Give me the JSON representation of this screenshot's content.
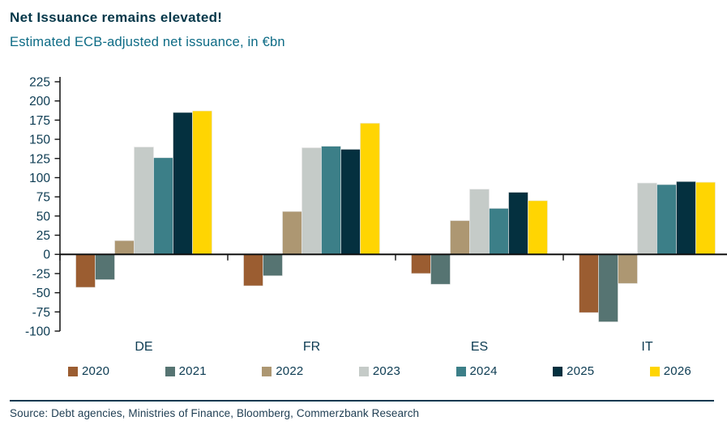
{
  "header": {
    "title": "Net Issuance remains elevated!",
    "subtitle": "Estimated ECB-adjusted net issuance, in €bn"
  },
  "chart_data": {
    "type": "bar",
    "title": "Net Issuance remains elevated!",
    "subtitle": "Estimated ECB-adjusted net issuance, in €bn",
    "categories": [
      "DE",
      "FR",
      "ES",
      "IT"
    ],
    "series": [
      {
        "name": "2020",
        "color": "#9B5D31",
        "values": [
          -43,
          -41,
          -25,
          -76
        ]
      },
      {
        "name": "2021",
        "color": "#567472",
        "values": [
          -33,
          -28,
          -39,
          -88
        ]
      },
      {
        "name": "2022",
        "color": "#AD9772",
        "values": [
          18,
          56,
          44,
          -38
        ]
      },
      {
        "name": "2023",
        "color": "#C5CBC8",
        "values": [
          140,
          139,
          85,
          93
        ]
      },
      {
        "name": "2024",
        "color": "#3C7F88",
        "values": [
          126,
          141,
          60,
          91
        ]
      },
      {
        "name": "2025",
        "color": "#04303F",
        "values": [
          185,
          137,
          81,
          95
        ]
      },
      {
        "name": "2026",
        "color": "#FFD502",
        "values": [
          187,
          171,
          70,
          94
        ]
      }
    ],
    "ylim": [
      -100,
      225
    ],
    "ytick_step": 25,
    "yticks": [
      225,
      200,
      175,
      150,
      125,
      100,
      75,
      50,
      25,
      0,
      -25,
      -50,
      -75,
      -100
    ],
    "grid": false,
    "legend_position": "bottom",
    "axis_color": "#111111",
    "tick_label_color": "#0C3B52"
  },
  "footer": {
    "source": "Source: Debt agencies, Ministries of Finance, Bloomberg, Commerzbank Research"
  }
}
